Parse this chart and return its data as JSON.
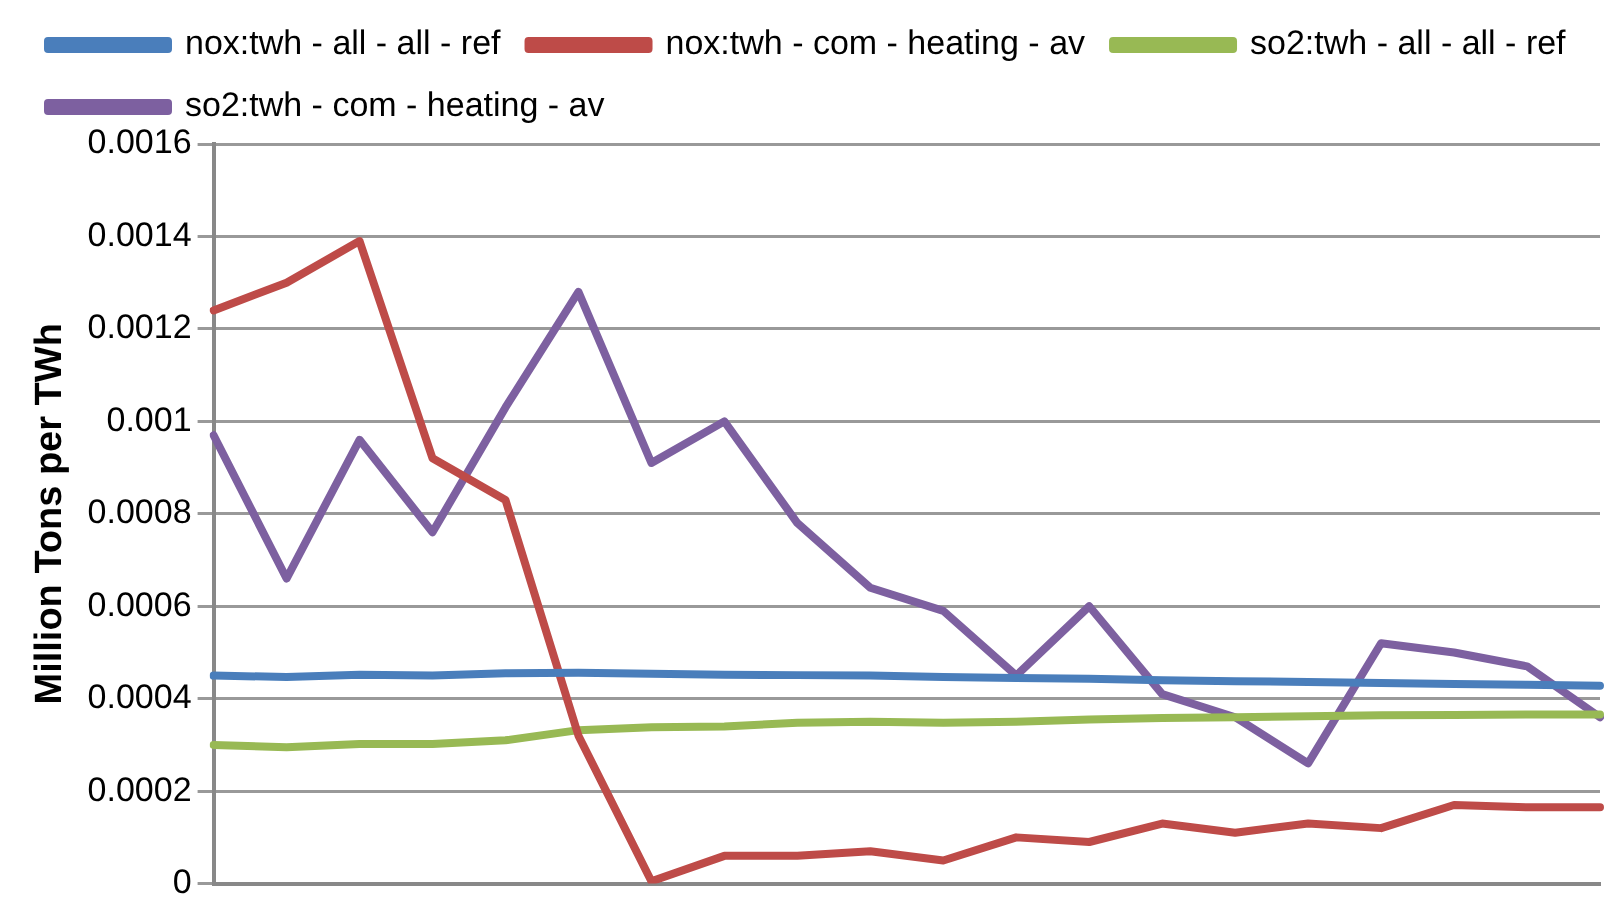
{
  "chart_data": {
    "type": "line",
    "ylabel": "Million Tons per TWh",
    "categories": [
      null,
      null,
      null,
      null,
      null,
      null,
      null,
      null,
      null,
      null,
      null,
      null,
      null,
      null,
      null,
      null,
      null,
      null,
      null,
      null
    ],
    "series": [
      {
        "name": "nox:twh - all - all - ref",
        "color": "#4a7ebb",
        "values": [
          0.00045,
          0.000447,
          0.000452,
          0.00045,
          0.000455,
          0.000456,
          0.000454,
          0.000452,
          0.000451,
          0.00045,
          0.000447,
          0.000445,
          0.000443,
          0.00044,
          0.000438,
          0.000436,
          0.000434,
          0.000432,
          0.00043,
          0.000428
        ]
      },
      {
        "name": "nox:twh - com - heating - av",
        "color": "#be4b48",
        "values": [
          0.00124,
          0.0013,
          0.00139,
          0.00092,
          0.00083,
          0.00032,
          5e-06,
          6e-05,
          6e-05,
          7e-05,
          5e-05,
          0.0001,
          9e-05,
          0.00013,
          0.00011,
          0.00013,
          0.00012,
          0.00017,
          0.000165,
          0.000165
        ]
      },
      {
        "name": "so2:twh - all - all - ref",
        "color": "#98b954",
        "values": [
          0.0003,
          0.000295,
          0.000302,
          0.000302,
          0.00031,
          0.000332,
          0.000338,
          0.00034,
          0.000348,
          0.00035,
          0.000348,
          0.00035,
          0.000355,
          0.000358,
          0.00036,
          0.000362,
          0.000364,
          0.000365,
          0.000366,
          0.000366
        ]
      },
      {
        "name": "so2:twh - com - heating - av",
        "color": "#7d60a0",
        "values": [
          0.00097,
          0.00066,
          0.00096,
          0.00076,
          0.00103,
          0.00128,
          0.00091,
          0.001,
          0.00078,
          0.00064,
          0.00059,
          0.00045,
          0.0006,
          0.00041,
          0.00036,
          0.00026,
          0.00052,
          0.0005,
          0.00047,
          0.00036
        ]
      }
    ],
    "ylim": [
      0,
      0.0016
    ],
    "yticks": [
      0,
      0.0002,
      0.0004,
      0.0006,
      0.0008,
      0.001,
      0.0012,
      0.0014,
      0.0016
    ],
    "grid": "y",
    "legend": "top",
    "marker": "none",
    "line_style": "solid",
    "tick_labels": "y"
  }
}
